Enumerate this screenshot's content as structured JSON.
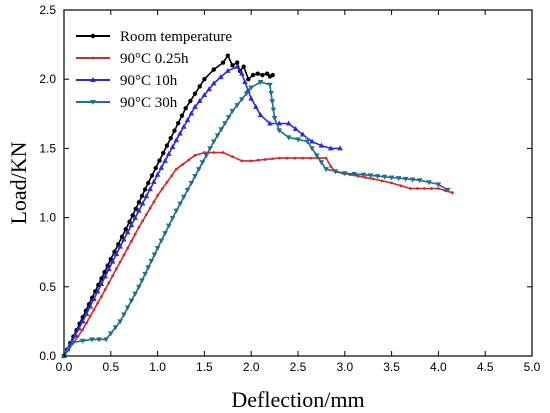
{
  "chart_data": {
    "type": "line",
    "title": "",
    "xlabel": "Deflection/mm",
    "ylabel": "Load/KN",
    "xlim": [
      0.0,
      5.0
    ],
    "ylim": [
      0.0,
      2.5
    ],
    "xticks": [
      "0.0",
      "0.5",
      "1.0",
      "1.5",
      "2.0",
      "2.5",
      "3.0",
      "3.5",
      "4.0",
      "4.5",
      "5.0"
    ],
    "yticks": [
      "0.0",
      "0.5",
      "1.0",
      "1.5",
      "2.0",
      "2.5"
    ],
    "grid": false,
    "legend_position": "top-left",
    "series": [
      {
        "name": "Room temperature",
        "color": "#000000",
        "marker": "circle",
        "x": [
          0.0,
          0.1,
          0.3,
          0.5,
          0.7,
          0.9,
          1.1,
          1.3,
          1.5,
          1.6,
          1.7,
          1.75,
          1.8,
          1.85,
          1.88,
          1.92,
          1.97,
          2.02,
          2.07,
          2.12,
          2.17,
          2.2,
          2.23
        ],
        "y": [
          0.0,
          0.14,
          0.42,
          0.7,
          0.97,
          1.25,
          1.52,
          1.79,
          2.0,
          2.07,
          2.12,
          2.17,
          2.1,
          2.12,
          2.06,
          2.09,
          2.0,
          2.03,
          2.04,
          2.03,
          2.04,
          2.02,
          2.03
        ]
      },
      {
        "name": "90°C 0.25h",
        "color": "#d62728",
        "marker": "dot",
        "x": [
          0.0,
          0.2,
          0.4,
          0.6,
          0.8,
          1.0,
          1.2,
          1.4,
          1.5,
          1.6,
          1.7,
          1.8,
          1.9,
          2.0,
          2.3,
          2.8,
          2.85,
          2.9,
          3.3,
          3.5,
          3.7,
          4.0,
          4.15
        ],
        "y": [
          0.0,
          0.19,
          0.43,
          0.68,
          0.93,
          1.16,
          1.35,
          1.45,
          1.47,
          1.47,
          1.47,
          1.44,
          1.41,
          1.41,
          1.43,
          1.43,
          1.37,
          1.33,
          1.28,
          1.25,
          1.21,
          1.21,
          1.18
        ]
      },
      {
        "name": "90°C 10h",
        "color": "#2a2ae0",
        "marker": "triangle-up",
        "x": [
          0.0,
          0.2,
          0.4,
          0.6,
          0.8,
          1.0,
          1.2,
          1.4,
          1.6,
          1.75,
          1.85,
          1.9,
          2.0,
          2.1,
          2.2,
          2.4,
          2.55,
          2.65,
          2.75,
          2.85,
          2.95
        ],
        "y": [
          0.0,
          0.25,
          0.52,
          0.79,
          1.05,
          1.31,
          1.56,
          1.8,
          1.97,
          2.06,
          2.09,
          2.04,
          1.86,
          1.74,
          1.68,
          1.68,
          1.6,
          1.55,
          1.52,
          1.5,
          1.5
        ]
      },
      {
        "name": "90°C 30h",
        "color": "#1f6f8b",
        "marker": "triangle-down",
        "x": [
          0.0,
          0.1,
          0.3,
          0.45,
          0.6,
          0.8,
          1.0,
          1.2,
          1.4,
          1.6,
          1.8,
          2.0,
          2.1,
          2.2,
          2.25,
          2.3,
          2.4,
          2.6,
          2.8,
          3.0,
          3.2,
          3.5,
          3.8,
          4.0,
          4.1
        ],
        "y": [
          0.0,
          0.1,
          0.12,
          0.12,
          0.25,
          0.5,
          0.78,
          1.05,
          1.3,
          1.55,
          1.77,
          1.94,
          1.98,
          1.96,
          1.72,
          1.63,
          1.58,
          1.55,
          1.35,
          1.32,
          1.31,
          1.29,
          1.27,
          1.24,
          1.2
        ]
      }
    ]
  }
}
